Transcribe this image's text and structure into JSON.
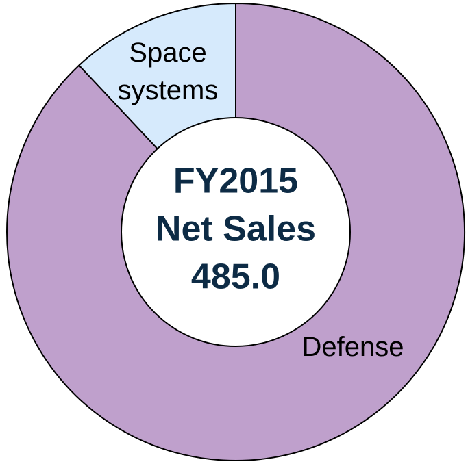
{
  "chart_data": {
    "type": "donut",
    "categories": [
      "Defense",
      "Space systems"
    ],
    "values": [
      88,
      12
    ],
    "colors": [
      "#bfa0cc",
      "#d6eafc"
    ],
    "center_label": [
      "FY2015",
      "Net Sales",
      "485.0"
    ]
  }
}
